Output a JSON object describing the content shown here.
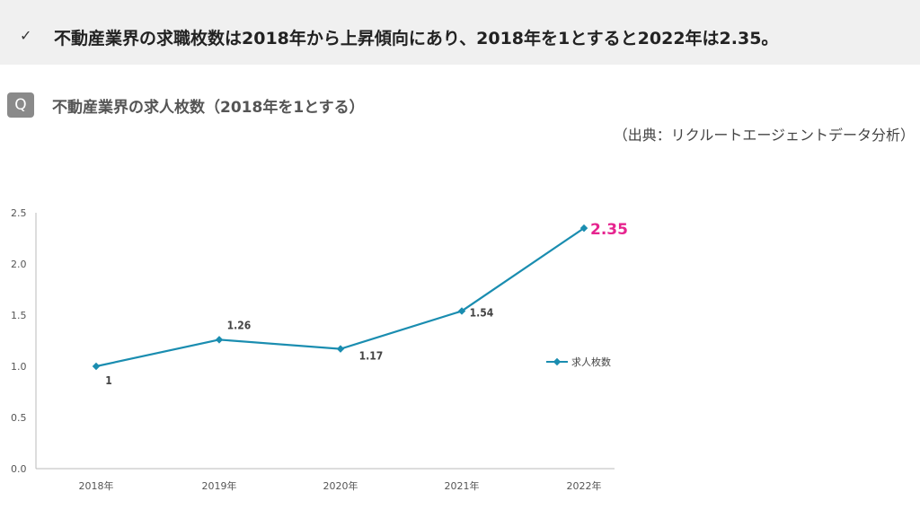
{
  "banner": {
    "check": "✓",
    "headline": "不動産業界の求職枚数は2018年から上昇傾向にあり、2018年を1とすると2022年は2.35。"
  },
  "question": {
    "badge": "Q",
    "title": "不動産業界の求人枚数（2018年を1とする）"
  },
  "source": "（出典：リクルートエージェントデータ分析）",
  "colors": {
    "line": "#1a8db0",
    "highlight": "#e6248f"
  },
  "chart_data": {
    "type": "line",
    "categories": [
      "2018年",
      "2019年",
      "2020年",
      "2021年",
      "2022年"
    ],
    "yticks": [
      "0.0",
      "0.5",
      "1.0",
      "1.5",
      "2.0",
      "2.5"
    ],
    "ylim": [
      0,
      2.5
    ],
    "grid": false,
    "legend": "right",
    "series": [
      {
        "name": "求人枚数",
        "values": [
          1,
          1.26,
          1.17,
          1.54,
          2.35
        ],
        "labels": [
          "1",
          "1.26",
          "1.17",
          "1.54",
          "2.35"
        ]
      }
    ]
  }
}
